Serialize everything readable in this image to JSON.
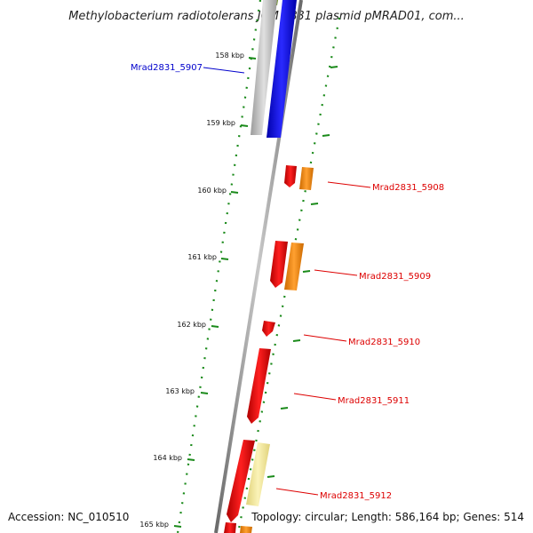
{
  "title": "Methylobacterium radiotolerans JCM 2831 plasmid pMRAD01, com...",
  "footer": {
    "accession": "Accession: NC_010510",
    "topology": "Topology: circular; Length: 586,164 bp; Genes: 514"
  },
  "scale": {
    "ticks": [
      "158 kbp",
      "159 kbp",
      "160 kbp",
      "161 kbp",
      "162 kbp",
      "163 kbp",
      "164 kbp",
      "165 kbp"
    ]
  },
  "genes": [
    {
      "id": "Mrad2831_5907",
      "label": "Mrad2831_5907",
      "color": "#0000cc",
      "strand": "left"
    },
    {
      "id": "Mrad2831_5908",
      "label": "Mrad2831_5908",
      "color": "#dd0000",
      "strand": "right"
    },
    {
      "id": "Mrad2831_5909",
      "label": "Mrad2831_5909",
      "color": "#dd0000",
      "strand": "right"
    },
    {
      "id": "Mrad2831_5910",
      "label": "Mrad2831_5910",
      "color": "#dd0000",
      "strand": "right"
    },
    {
      "id": "Mrad2831_5911",
      "label": "Mrad2831_5911",
      "color": "#dd0000",
      "strand": "right"
    },
    {
      "id": "Mrad2831_5912",
      "label": "Mrad2831_5912",
      "color": "#dd0000",
      "strand": "right"
    }
  ],
  "colors": {
    "backbone": "#888888",
    "gc_trace": "#1a8a1a",
    "cds_red": "#ee0000",
    "cds_orange": "#ff8c00",
    "cds_yellow": "#f0e68c",
    "cds_blue": "#0000ff",
    "cds_gray": "#b8b8b8",
    "cds_olive": "#6b8e23"
  }
}
